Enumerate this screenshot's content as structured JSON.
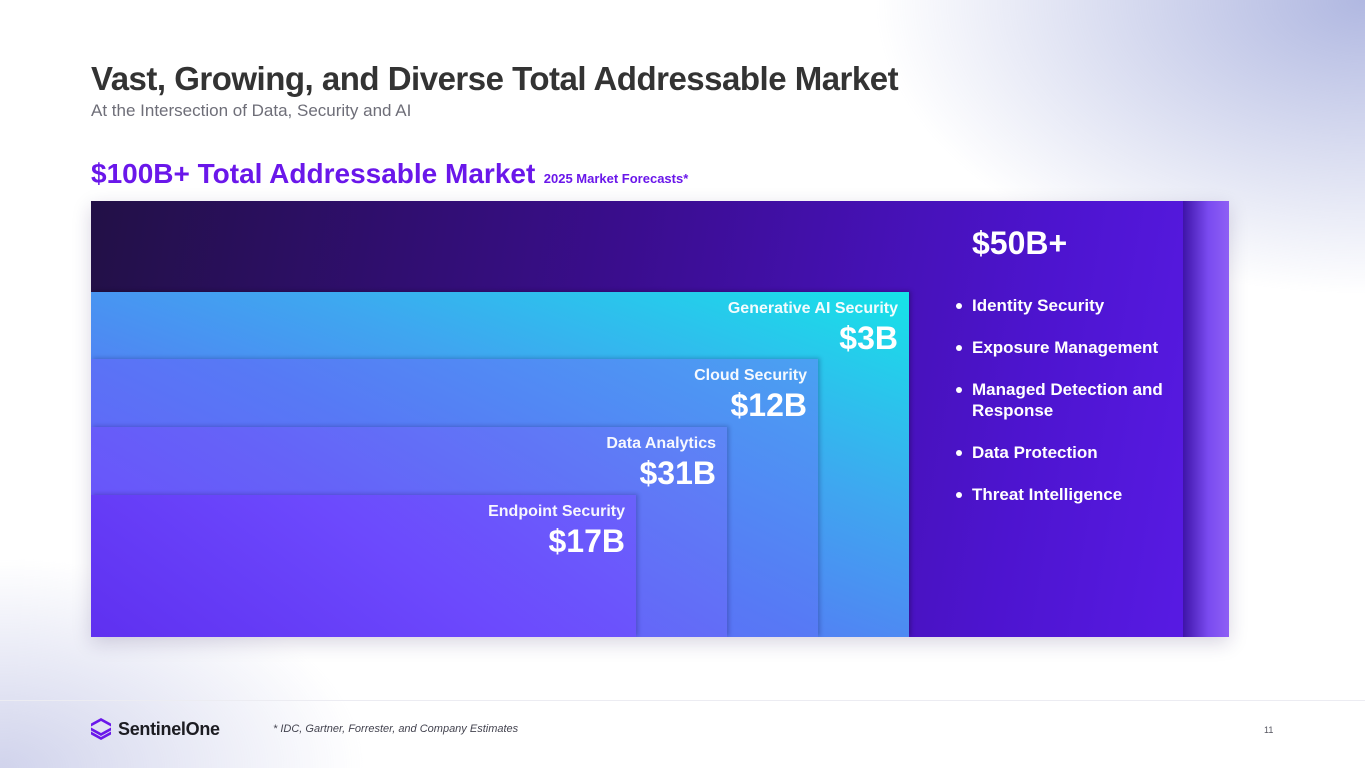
{
  "slide": {
    "title": "Vast, Growing, and Diverse Total Addressable Market",
    "subtitle": "At the Intersection of Data, Security and AI",
    "tam_heading": "$100B+ Total Addressable Market",
    "tam_note": "2025 Market Forecasts*"
  },
  "chart_data": {
    "type": "nested-area",
    "segments": [
      {
        "name": "Generative AI Security",
        "value": 3,
        "label": "$3B"
      },
      {
        "name": "Cloud Security",
        "value": 12,
        "label": "$12B"
      },
      {
        "name": "Data Analytics",
        "value": 31,
        "label": "$31B"
      },
      {
        "name": "Endpoint Security",
        "value": 17,
        "label": "$17B"
      }
    ],
    "other": {
      "label": "$50B+",
      "items": [
        "Identity Security",
        "Exposure Management",
        "Managed Detection and Response",
        "Data Protection",
        "Threat Intelligence"
      ]
    }
  },
  "footer": {
    "brand": "SentinelOne",
    "footnote": "* IDC, Gartner, Forrester, and Company Estimates",
    "page_number": "11"
  },
  "colors": {
    "accent_purple": "#6a17ea",
    "title_gray": "#333333",
    "outer_dark": "#3a0d8e",
    "genai_cyan": "#16e3e8",
    "endpoint_violet": "#6c49fd"
  }
}
